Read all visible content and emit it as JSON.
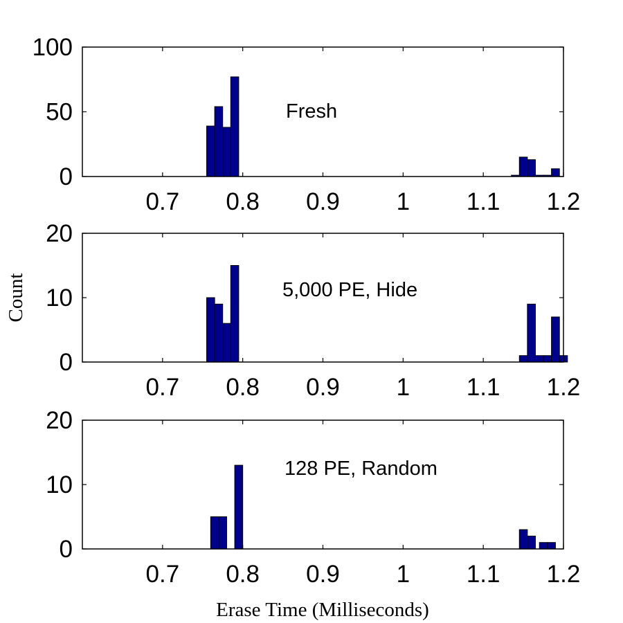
{
  "figure": {
    "ylabel": "Count",
    "xlabel": "Erase Time (Milliseconds)"
  },
  "colors": {
    "bar_fill": "#00008f",
    "bar_edge": "#000000",
    "axis": "#000000"
  },
  "chart_data": [
    {
      "type": "bar",
      "annotation": "Fresh",
      "xlim": [
        0.6,
        1.2
      ],
      "ylim": [
        0,
        100
      ],
      "xticks": [
        "0.7",
        "0.8",
        "0.9",
        "1",
        "1.1",
        "1.2"
      ],
      "yticks": [
        "0",
        "50",
        "100"
      ],
      "bin_width": 0.01,
      "bins": [
        {
          "x": 0.76,
          "y": 39
        },
        {
          "x": 0.77,
          "y": 54
        },
        {
          "x": 0.78,
          "y": 38
        },
        {
          "x": 0.79,
          "y": 77
        },
        {
          "x": 1.14,
          "y": 1
        },
        {
          "x": 1.15,
          "y": 15
        },
        {
          "x": 1.16,
          "y": 13
        },
        {
          "x": 1.17,
          "y": 1
        },
        {
          "x": 1.18,
          "y": 1
        },
        {
          "x": 1.19,
          "y": 6
        }
      ]
    },
    {
      "type": "bar",
      "annotation": "5,000 PE, Hide",
      "xlim": [
        0.6,
        1.2
      ],
      "ylim": [
        0,
        20
      ],
      "xticks": [
        "0.7",
        "0.8",
        "0.9",
        "1",
        "1.1",
        "1.2"
      ],
      "yticks": [
        "0",
        "10",
        "20"
      ],
      "bin_width": 0.01,
      "bins": [
        {
          "x": 0.76,
          "y": 10
        },
        {
          "x": 0.77,
          "y": 9
        },
        {
          "x": 0.78,
          "y": 6
        },
        {
          "x": 0.79,
          "y": 15
        },
        {
          "x": 1.15,
          "y": 1
        },
        {
          "x": 1.16,
          "y": 9
        },
        {
          "x": 1.17,
          "y": 1
        },
        {
          "x": 1.18,
          "y": 1
        },
        {
          "x": 1.19,
          "y": 7
        },
        {
          "x": 1.2,
          "y": 1
        }
      ]
    },
    {
      "type": "bar",
      "annotation": "128 PE, Random",
      "xlim": [
        0.6,
        1.2
      ],
      "ylim": [
        0,
        20
      ],
      "xticks": [
        "0.7",
        "0.8",
        "0.9",
        "1",
        "1.1",
        "1.2"
      ],
      "yticks": [
        "0",
        "10",
        "20"
      ],
      "bin_width": 0.01,
      "bins": [
        {
          "x": 0.765,
          "y": 5
        },
        {
          "x": 0.775,
          "y": 5
        },
        {
          "x": 0.795,
          "y": 13
        },
        {
          "x": 1.15,
          "y": 3
        },
        {
          "x": 1.16,
          "y": 2
        },
        {
          "x": 1.175,
          "y": 1
        },
        {
          "x": 1.185,
          "y": 1
        }
      ]
    }
  ]
}
